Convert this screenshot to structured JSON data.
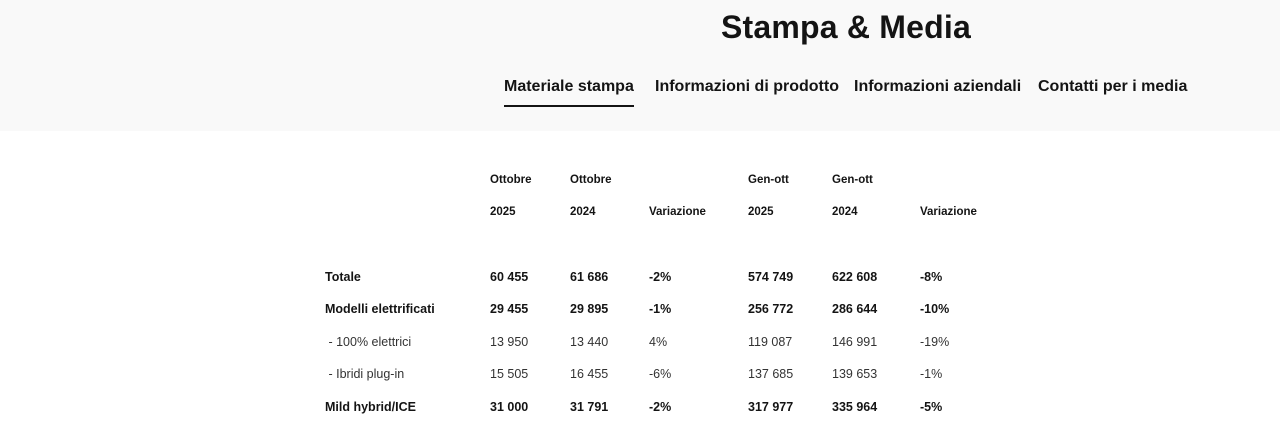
{
  "header": {
    "title": "Stampa & Media",
    "nav": [
      {
        "label": "Materiale stampa",
        "active": true
      },
      {
        "label": "Informazioni di prodotto",
        "active": false
      },
      {
        "label": "Informazioni aziendali",
        "active": false
      },
      {
        "label": "Contatti per i media",
        "active": false
      }
    ]
  },
  "table": {
    "headers": {
      "oct2025": [
        "Ottobre",
        "2025"
      ],
      "oct2024": [
        "Ottobre",
        "2024"
      ],
      "var_month": "Variazione",
      "ytd2025": [
        "Gen-ott",
        "2025"
      ],
      "ytd2024": [
        "Gen-ott",
        "2024"
      ],
      "var_ytd": "Variazione"
    },
    "rows": [
      {
        "label": "Totale",
        "style": "bold",
        "values": [
          "60 455",
          "61 686",
          "-2%",
          "574 749",
          "622 608",
          "-8%"
        ]
      },
      {
        "label": "Modelli elettrificati",
        "style": "bold",
        "values": [
          "29 455",
          "29 895",
          "-1%",
          "256 772",
          "286 644",
          "-10%"
        ]
      },
      {
        "label": " - 100% elettrici",
        "style": "light",
        "values": [
          "13 950",
          "13 440",
          "4%",
          "119 087",
          "146 991",
          "-19%"
        ]
      },
      {
        "label": " - Ibridi plug-in",
        "style": "light",
        "values": [
          "15 505",
          "16 455",
          "-6%",
          "137 685",
          "139 653",
          "-1%"
        ]
      },
      {
        "label": "Mild hybrid/ICE",
        "style": "bold",
        "values": [
          "31 000",
          "31 791",
          "-2%",
          "317 977",
          "335 964",
          "-5%"
        ]
      }
    ]
  }
}
